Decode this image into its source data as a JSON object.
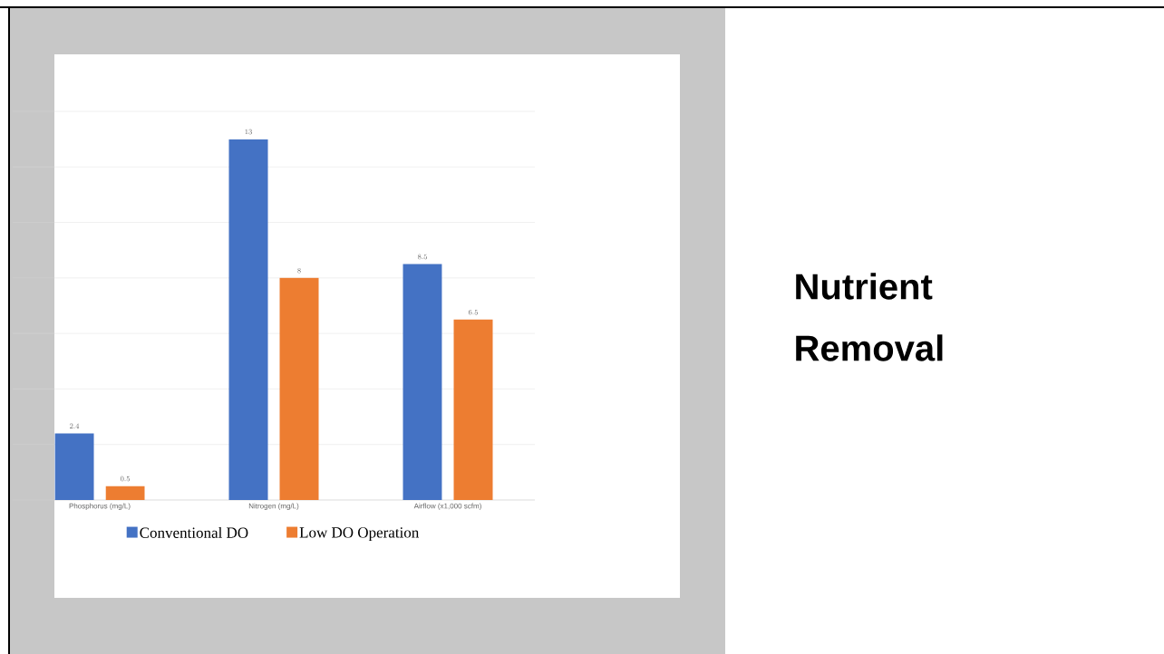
{
  "chart_data": {
    "type": "bar",
    "title": "Nutrient Removal",
    "categories": [
      "Phosphorus (mg/L)",
      "Nitrogen (mg/L)",
      "Airflow (x1,000 scfm)"
    ],
    "series": [
      {
        "name": "Conventional DO",
        "color": "#4472c4",
        "values": [
          2.4,
          13,
          8.5
        ]
      },
      {
        "name": "Low DO Operation",
        "color": "#ed7d31",
        "values": [
          0.5,
          8,
          6.5
        ]
      }
    ],
    "ylim": [
      0,
      14
    ],
    "yticks": [
      {
        "value": 0,
        "label": null
      },
      {
        "value": 2,
        "label": null
      },
      {
        "value": 4,
        "label": null
      },
      {
        "value": 6,
        "label": null
      },
      {
        "value": 8,
        "label": null
      },
      {
        "value": 10,
        "label": null
      },
      {
        "value": 12,
        "label": null
      },
      {
        "value": 14,
        "label": null
      }
    ],
    "tick_labels": "x",
    "grid": "y",
    "legend": "bottom",
    "data_labels": true
  }
}
